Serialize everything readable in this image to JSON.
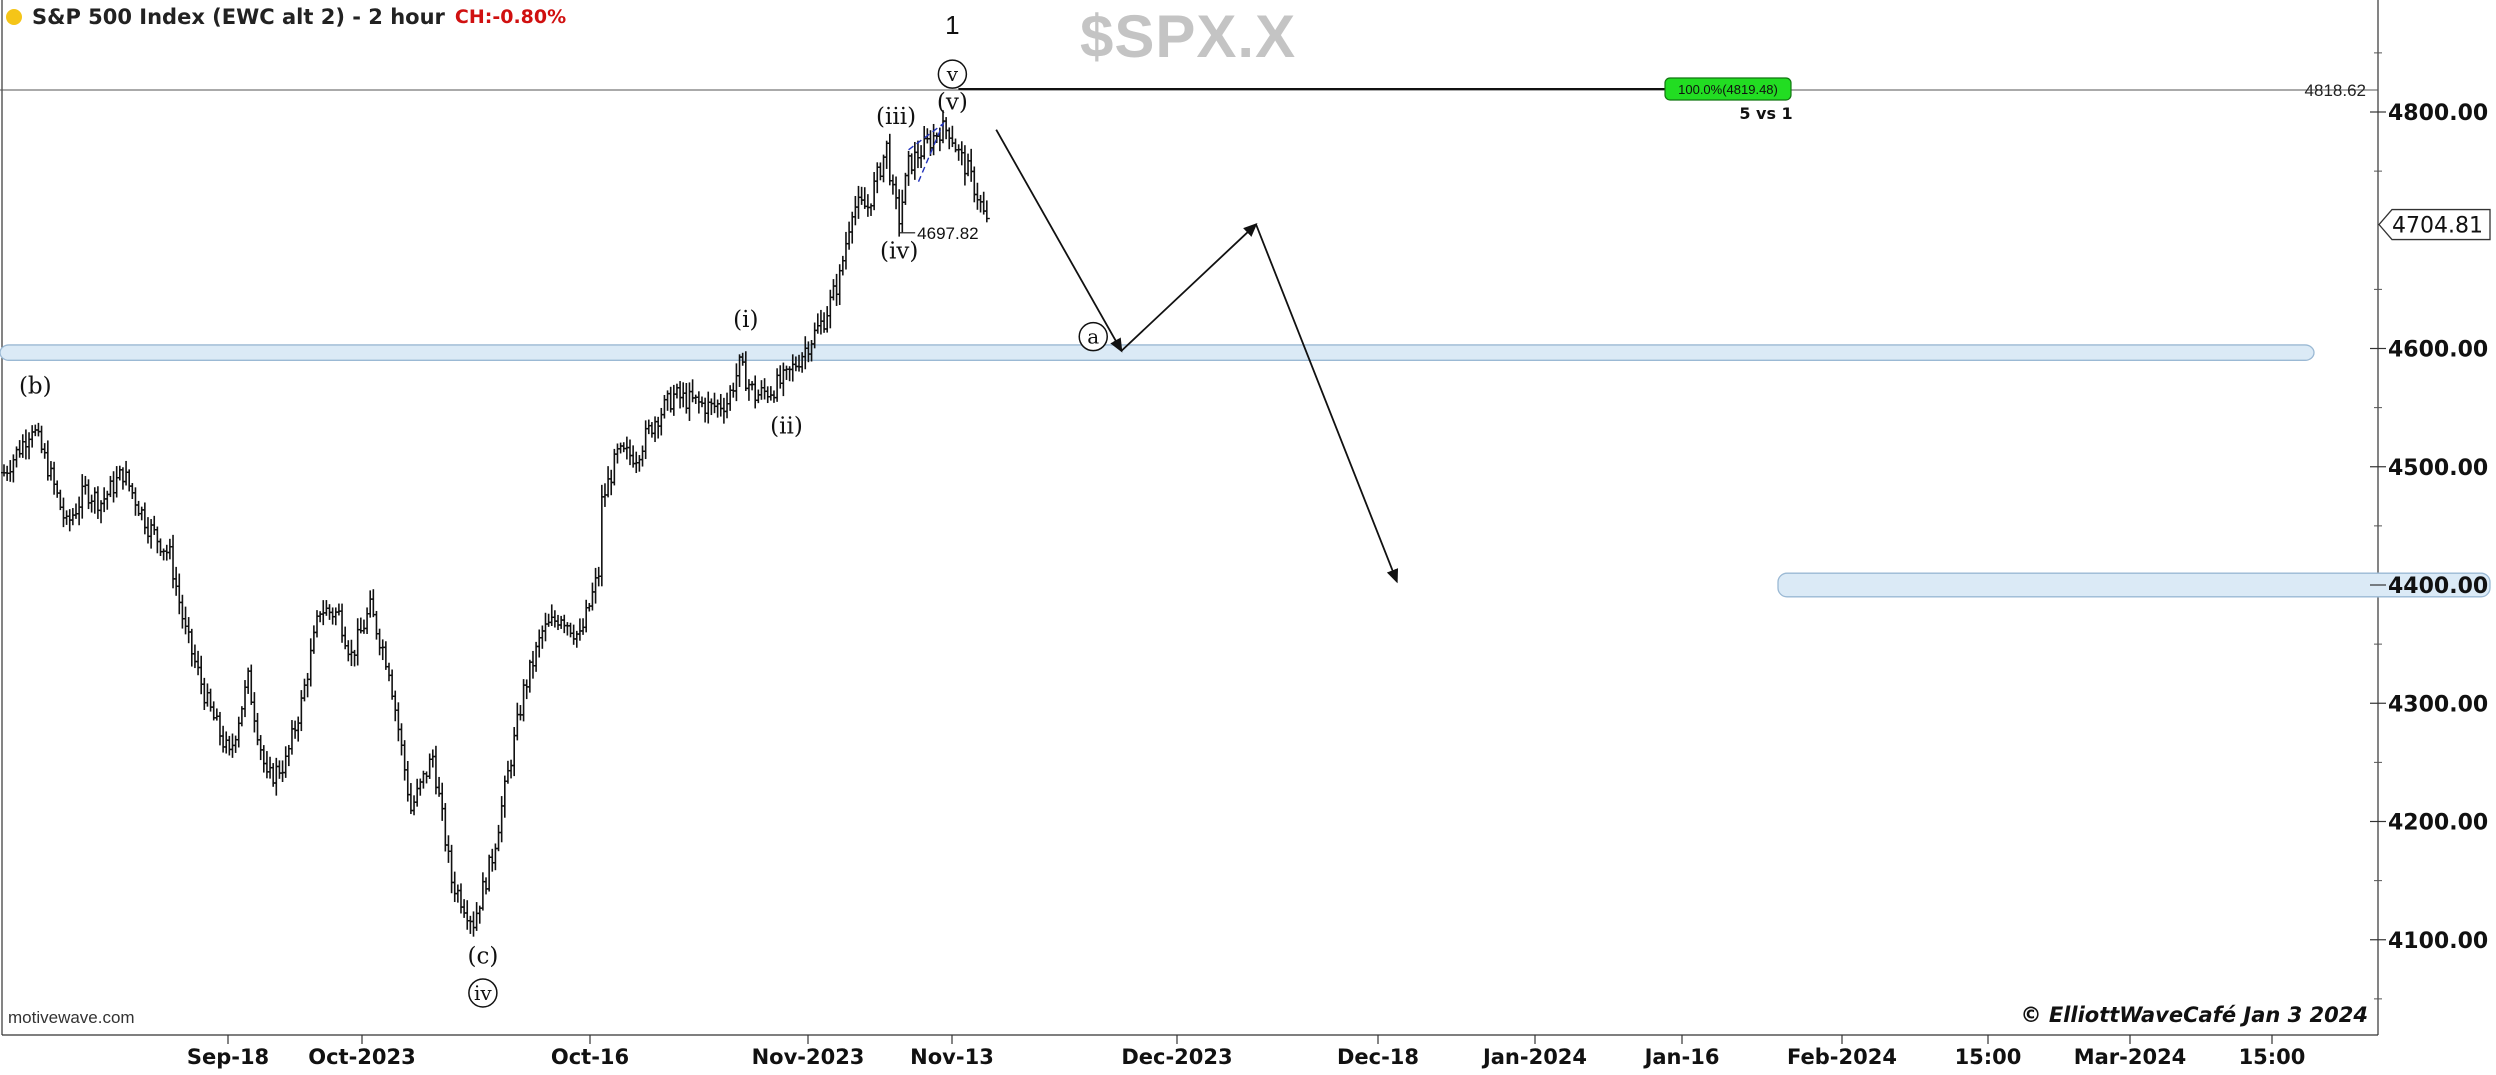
{
  "header": {
    "title": "S&P 500 Index (EWC alt 2) - 2 hour",
    "change": "CH:-0.80%",
    "watermark": "$SPX.X",
    "source": "motivewave.com",
    "copyright": "© ElliottWaveCafé Jan 3 2024"
  },
  "colors": {
    "status_dot": "#f5c518",
    "change": "#d01010",
    "watermark": "#c4c4c4",
    "zone_fill": "#dbeaf6",
    "zone_stroke": "#9bb9d4",
    "target_badge": "#22dd22",
    "pattern_dash": "#2233bb",
    "bars": "#111111"
  },
  "chart_data": {
    "type": "bar",
    "title": "S&P 500 Index (EWC alt 2) - 2 hour",
    "y_range": [
      4040,
      4880
    ],
    "y_ticks": [
      {
        "value": 4100,
        "label": "4100.00"
      },
      {
        "value": 4200,
        "label": "4200.00"
      },
      {
        "value": 4300,
        "label": "4300.00"
      },
      {
        "value": 4400,
        "label": "4400.00"
      },
      {
        "value": 4500,
        "label": "4500.00"
      },
      {
        "value": 4600,
        "label": "4600.00"
      },
      {
        "value": 4800,
        "label": "4800.00"
      }
    ],
    "x_labels": [
      "Sep-18",
      "Oct-2023",
      "Oct-16",
      "Nov-2023",
      "Nov-13",
      "Dec-2023",
      "Dec-18",
      "Jan-2024",
      "Jan-16",
      "Feb-2024",
      "15:00",
      "Mar-2024",
      "15:00"
    ],
    "x_label_gap_after_index": 7,
    "price_anchors": [
      {
        "bar": 0,
        "price": 4495
      },
      {
        "bar": 6,
        "price": 4520
      },
      {
        "bar": 9,
        "price": 4535
      },
      {
        "bar": 14,
        "price": 4500
      },
      {
        "bar": 20,
        "price": 4450
      },
      {
        "bar": 26,
        "price": 4480
      },
      {
        "bar": 31,
        "price": 4470
      },
      {
        "bar": 38,
        "price": 4495
      },
      {
        "bar": 46,
        "price": 4450
      },
      {
        "bar": 53,
        "price": 4425
      },
      {
        "bar": 58,
        "price": 4360
      },
      {
        "bar": 65,
        "price": 4300
      },
      {
        "bar": 72,
        "price": 4255
      },
      {
        "bar": 78,
        "price": 4320
      },
      {
        "bar": 84,
        "price": 4235
      },
      {
        "bar": 90,
        "price": 4250
      },
      {
        "bar": 95,
        "price": 4300
      },
      {
        "bar": 101,
        "price": 4380
      },
      {
        "bar": 107,
        "price": 4375
      },
      {
        "bar": 111,
        "price": 4340
      },
      {
        "bar": 117,
        "price": 4380
      },
      {
        "bar": 123,
        "price": 4330
      },
      {
        "bar": 130,
        "price": 4210
      },
      {
        "bar": 137,
        "price": 4255
      },
      {
        "bar": 143,
        "price": 4150
      },
      {
        "bar": 150,
        "price": 4115
      },
      {
        "bar": 156,
        "price": 4170
      },
      {
        "bar": 161,
        "price": 4240
      },
      {
        "bar": 166,
        "price": 4310
      },
      {
        "bar": 172,
        "price": 4360
      },
      {
        "bar": 178,
        "price": 4375
      },
      {
        "bar": 184,
        "price": 4355
      },
      {
        "bar": 190,
        "price": 4410
      },
      {
        "bar": 191,
        "price": 4470
      },
      {
        "bar": 196,
        "price": 4510
      },
      {
        "bar": 202,
        "price": 4510
      },
      {
        "bar": 208,
        "price": 4540
      },
      {
        "bar": 214,
        "price": 4560
      },
      {
        "bar": 220,
        "price": 4555
      },
      {
        "bar": 226,
        "price": 4550
      },
      {
        "bar": 231,
        "price": 4555
      },
      {
        "bar": 235,
        "price": 4585
      },
      {
        "bar": 240,
        "price": 4560
      },
      {
        "bar": 245,
        "price": 4565
      },
      {
        "bar": 250,
        "price": 4575
      },
      {
        "bar": 256,
        "price": 4600
      },
      {
        "bar": 262,
        "price": 4625
      },
      {
        "bar": 267,
        "price": 4660
      },
      {
        "bar": 271,
        "price": 4720
      },
      {
        "bar": 276,
        "price": 4720
      },
      {
        "bar": 282,
        "price": 4770
      },
      {
        "bar": 284,
        "price": 4730
      },
      {
        "bar": 286,
        "price": 4710
      },
      {
        "bar": 289,
        "price": 4755
      },
      {
        "bar": 294,
        "price": 4770
      },
      {
        "bar": 299,
        "price": 4785
      },
      {
        "bar": 302,
        "price": 4785
      },
      {
        "bar": 305,
        "price": 4765
      },
      {
        "bar": 308,
        "price": 4750
      },
      {
        "bar": 311,
        "price": 4730
      },
      {
        "bar": 314,
        "price": 4705
      }
    ],
    "horizontal_line": {
      "value": 4818.62,
      "label": "4818.62"
    },
    "last_price": {
      "value": 4704.81,
      "label": "4704.81"
    },
    "low_marker": {
      "value": 4697.82,
      "label": "4697.82"
    },
    "target_badge": {
      "label": "100.0%(4819.48)",
      "note": "5 vs 1"
    },
    "zones": [
      {
        "from": 4590,
        "to": 4603
      },
      {
        "from": 4390,
        "to": 4410
      }
    ],
    "projection": [
      {
        "bar": 317,
        "price": 4785
      },
      {
        "bar": 357,
        "price": 4598
      },
      {
        "bar": 400,
        "price": 4705
      },
      {
        "bar": 445,
        "price": 4403
      }
    ],
    "wave_labels": [
      {
        "text": "(b)",
        "bar": 10,
        "price": 4562,
        "circled": false
      },
      {
        "text": "(c)",
        "bar": 153,
        "price": 4080,
        "circled": false
      },
      {
        "text": "iv",
        "bar": 153,
        "price": 4055,
        "circled": true
      },
      {
        "text": "(i)",
        "bar": 237,
        "price": 4618,
        "circled": false
      },
      {
        "text": "(ii)",
        "bar": 250,
        "price": 4528,
        "circled": false
      },
      {
        "text": "(iii)",
        "bar": 285,
        "price": 4790,
        "circled": false
      },
      {
        "text": "(iv)",
        "bar": 286,
        "price": 4676,
        "circled": false
      },
      {
        "text": "(v)",
        "bar": 303,
        "price": 4802,
        "circled": false
      },
      {
        "text": "v",
        "bar": 303,
        "price": 4832,
        "circled": true
      },
      {
        "text": "1",
        "bar": 303,
        "price": 4866,
        "circled": false
      },
      {
        "text": "a",
        "bar": 348,
        "price": 4610,
        "circled": true
      }
    ]
  }
}
